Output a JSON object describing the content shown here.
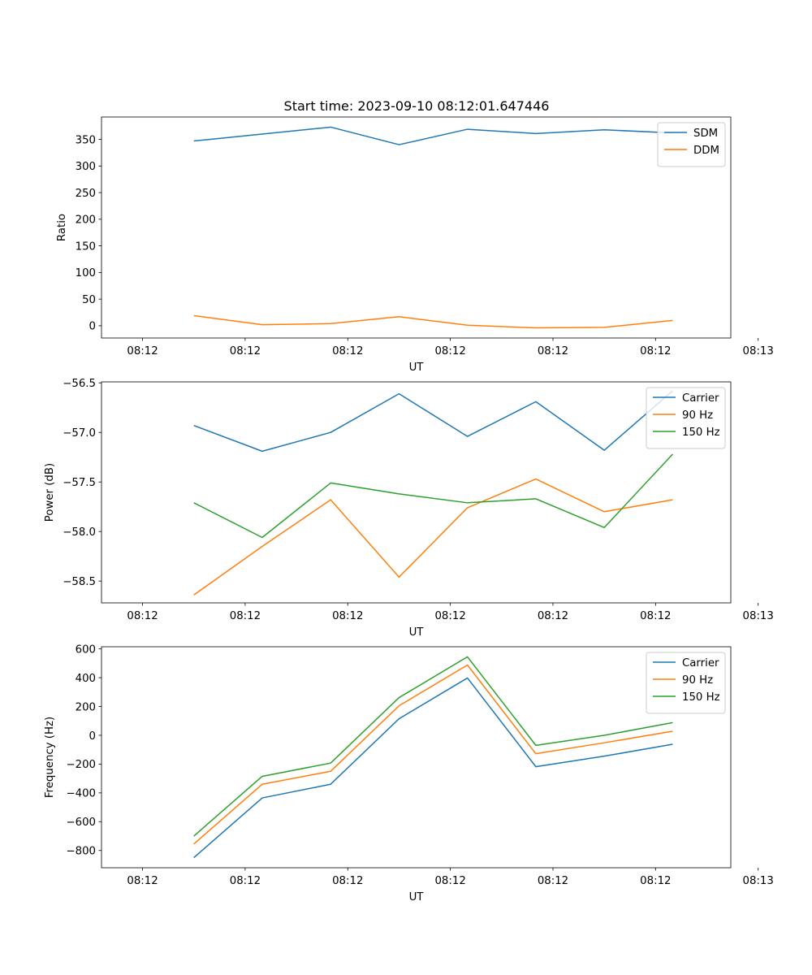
{
  "figure_title": "Start time: 2023-09-10 08:12:01.647446",
  "chart_data": [
    {
      "type": "line",
      "title": "Start time: 2023-09-10 08:12:01.647446",
      "xlabel": "UT",
      "ylabel": "Ratio",
      "xlim": [
        -0.6,
        8.6
      ],
      "ylim": [
        -23,
        392
      ],
      "x": [
        0.75,
        1.75,
        2.75,
        3.75,
        4.75,
        5.75,
        6.75,
        7.75
      ],
      "xticks": [
        0,
        1.5,
        3,
        4.5,
        6,
        7.5,
        9
      ],
      "xtick_labels": [
        "08:12",
        "08:12",
        "08:12",
        "08:12",
        "08:12",
        "08:12",
        "08:13"
      ],
      "yticks": [
        0,
        50,
        100,
        150,
        200,
        250,
        300,
        350
      ],
      "ytick_labels": [
        "0",
        "50",
        "100",
        "150",
        "200",
        "250",
        "300",
        "350"
      ],
      "legend_location": "top-right",
      "series": [
        {
          "name": "SDM",
          "color": "#1f77b4",
          "values": [
            347,
            360,
            373,
            340,
            369,
            361,
            368,
            362
          ]
        },
        {
          "name": "DDM",
          "color": "#ff7f0e",
          "values": [
            19,
            2,
            4,
            17,
            1,
            -4,
            -3,
            10
          ]
        }
      ]
    },
    {
      "type": "line",
      "xlabel": "UT",
      "ylabel": "Power (dB)",
      "xlim": [
        -0.6,
        8.6
      ],
      "ylim": [
        -58.72,
        -56.49
      ],
      "x": [
        0.75,
        1.75,
        2.75,
        3.75,
        4.75,
        5.75,
        6.75,
        7.75
      ],
      "xticks": [
        0,
        1.5,
        3,
        4.5,
        6,
        7.5,
        9
      ],
      "xtick_labels": [
        "08:12",
        "08:12",
        "08:12",
        "08:12",
        "08:12",
        "08:12",
        "08:13"
      ],
      "yticks": [
        -56.5,
        -57.0,
        -57.5,
        -58.0,
        -58.5
      ],
      "ytick_labels": [
        "−56.5",
        "−57.0",
        "−57.5",
        "−58.0",
        "−58.5"
      ],
      "legend_location": "top-right",
      "series": [
        {
          "name": "Carrier",
          "color": "#1f77b4",
          "values": [
            -56.93,
            -57.19,
            -57.0,
            -56.61,
            -57.04,
            -56.69,
            -57.18,
            -56.58
          ]
        },
        {
          "name": "90 Hz",
          "color": "#ff7f0e",
          "values": [
            -58.64,
            -58.15,
            -57.68,
            -58.46,
            -57.76,
            -57.47,
            -57.8,
            -57.68
          ]
        },
        {
          "name": "150 Hz",
          "color": "#2ca02c",
          "values": [
            -57.71,
            -58.06,
            -57.51,
            -57.62,
            -57.71,
            -57.67,
            -57.96,
            -57.22
          ]
        }
      ]
    },
    {
      "type": "line",
      "xlabel": "UT",
      "ylabel": "Frequency (Hz)",
      "xlim": [
        -0.6,
        8.6
      ],
      "ylim": [
        -920,
        615
      ],
      "x": [
        0.75,
        1.75,
        2.75,
        3.75,
        4.75,
        5.75,
        6.75,
        7.75
      ],
      "xticks": [
        0,
        1.5,
        3,
        4.5,
        6,
        7.5,
        9
      ],
      "xtick_labels": [
        "08:12",
        "08:12",
        "08:12",
        "08:12",
        "08:12",
        "08:12",
        "08:13"
      ],
      "yticks": [
        600,
        400,
        200,
        0,
        -200,
        -400,
        -600,
        -800
      ],
      "ytick_labels": [
        "600",
        "400",
        "200",
        "0",
        "−200",
        "−400",
        "−600",
        "−800"
      ],
      "legend_location": "top-right",
      "series": [
        {
          "name": "Carrier",
          "color": "#1f77b4",
          "values": [
            -850,
            -435,
            -340,
            115,
            398,
            -218,
            -145,
            -62
          ]
        },
        {
          "name": "90 Hz",
          "color": "#ff7f0e",
          "values": [
            -755,
            -340,
            -250,
            205,
            488,
            -128,
            -52,
            28
          ]
        },
        {
          "name": "150 Hz",
          "color": "#2ca02c",
          "values": [
            -700,
            -285,
            -193,
            262,
            545,
            -70,
            0,
            88
          ]
        }
      ]
    }
  ]
}
